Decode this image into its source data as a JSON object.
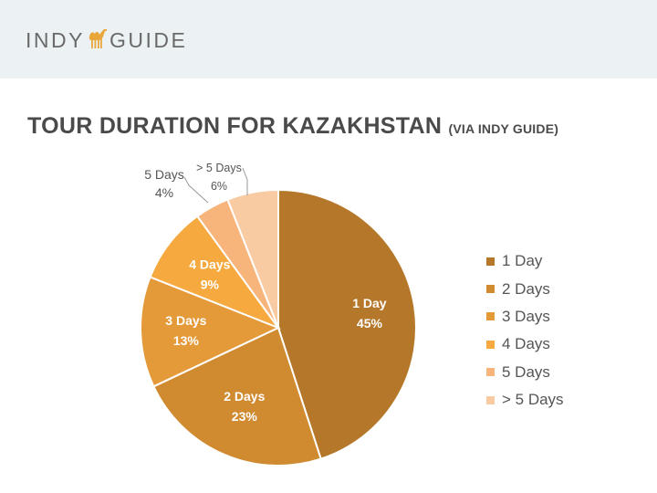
{
  "brand": {
    "left": "INDY",
    "right": "GUIDE",
    "logo_icon": "camel-icon",
    "logo_color": "#e9a63a"
  },
  "title": {
    "main": "TOUR DURATION FOR KAZAKHSTAN",
    "sub": "(VIA INDY GUIDE)"
  },
  "chart_data": {
    "type": "pie",
    "title": "TOUR DURATION FOR KAZAKHSTAN",
    "subtitle": "(VIA INDY GUIDE)",
    "unit": "%",
    "legend_position": "right",
    "slices": [
      {
        "label": "1 Day",
        "value": 45,
        "color": "#b5782a",
        "label_placement": "inside"
      },
      {
        "label": "2 Days",
        "value": 23,
        "color": "#d08b31",
        "label_placement": "inside"
      },
      {
        "label": "3 Days",
        "value": 13,
        "color": "#e59a3a",
        "label_placement": "inside"
      },
      {
        "label": "4 Days",
        "value": 9,
        "color": "#f6a93e",
        "label_placement": "inside"
      },
      {
        "label": "5 Days",
        "value": 4,
        "color": "#f7b57c",
        "label_placement": "outside"
      },
      {
        "label": "> 5 Days",
        "value": 6,
        "color": "#f9cba3",
        "label_placement": "outside"
      }
    ]
  }
}
